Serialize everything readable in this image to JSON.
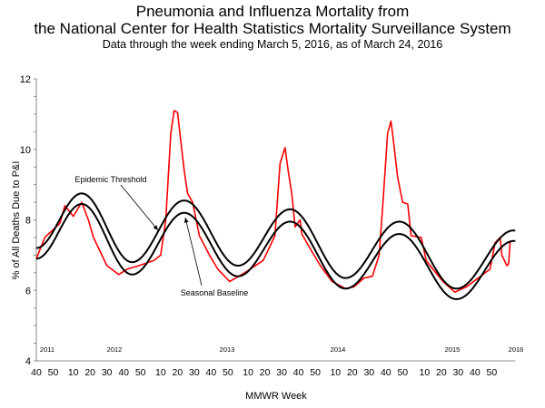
{
  "chart_data": {
    "type": "line",
    "title": "Pneumonia and Influenza Mortality from",
    "title_line2": "the National Center for Health Statistics Mortality Surveillance System",
    "subtitle": "Data through the week ending March 5, 2016, as of March 24, 2016",
    "xlabel": "MMWR Week",
    "ylabel": "% of All Deaths Due to P&I",
    "ylim": [
      4,
      12
    ],
    "yticks": [
      "4",
      "6",
      "8",
      "10",
      "12"
    ],
    "xlim": [
      "2010-40",
      "2016-12"
    ],
    "xticks": [
      {
        "week": "2010-40",
        "label": "40"
      },
      {
        "week": "2010-50",
        "label": "50"
      },
      {
        "week": "2011-10",
        "label": "10"
      },
      {
        "week": "2011-20",
        "label": "20"
      },
      {
        "week": "2011-30",
        "label": "30"
      },
      {
        "week": "2011-40",
        "label": "40"
      },
      {
        "week": "2011-50",
        "label": "50"
      },
      {
        "week": "2012-10",
        "label": "10"
      },
      {
        "week": "2012-20",
        "label": "20"
      },
      {
        "week": "2012-30",
        "label": "30"
      },
      {
        "week": "2012-40",
        "label": "40"
      },
      {
        "week": "2012-50",
        "label": "50"
      },
      {
        "week": "2013-10",
        "label": "10"
      },
      {
        "week": "2013-20",
        "label": "20"
      },
      {
        "week": "2013-30",
        "label": "30"
      },
      {
        "week": "2013-40",
        "label": "40"
      },
      {
        "week": "2013-50",
        "label": "50"
      },
      {
        "week": "2014-10",
        "label": "10"
      },
      {
        "week": "2014-20",
        "label": "20"
      },
      {
        "week": "2014-30",
        "label": "30"
      },
      {
        "week": "2014-40",
        "label": "40"
      },
      {
        "week": "2014-50",
        "label": "50"
      },
      {
        "week": "2015-10",
        "label": "10"
      },
      {
        "week": "2015-20",
        "label": "20"
      },
      {
        "week": "2015-30",
        "label": "30"
      },
      {
        "week": "2015-40",
        "label": "40"
      },
      {
        "week": "2015-50",
        "label": "50"
      }
    ],
    "year_labels": [
      "2011",
      "2012",
      "2013",
      "2014",
      "2015",
      "2016"
    ],
    "grid": false,
    "legend": "none",
    "annotations": [
      "Epidemic Threshold",
      "Seasonal Baseline"
    ],
    "series": [
      {
        "color": "#ff0000",
        "points": [
          [
            "2010-40",
            6.9
          ],
          [
            "2010-45",
            7.5
          ],
          [
            "2011-02",
            7.9
          ],
          [
            "2011-05",
            8.4
          ],
          [
            "2011-10",
            8.1
          ],
          [
            "2011-15",
            8.5
          ],
          [
            "2011-19",
            8.0
          ],
          [
            "2011-22",
            7.5
          ],
          [
            "2011-30",
            6.7
          ],
          [
            "2011-37",
            6.45
          ],
          [
            "2011-42",
            6.6
          ],
          [
            "2011-49",
            6.7
          ],
          [
            "2012-06",
            6.85
          ],
          [
            "2012-10",
            7.0
          ],
          [
            "2012-13",
            8.0
          ],
          [
            "2012-16",
            10.45
          ],
          [
            "2012-18",
            11.1
          ],
          [
            "2012-20",
            11.05
          ],
          [
            "2012-24",
            9.4
          ],
          [
            "2012-26",
            8.75
          ],
          [
            "2012-29",
            8.5
          ],
          [
            "2012-33",
            7.55
          ],
          [
            "2012-39",
            7.0
          ],
          [
            "2012-44",
            6.6
          ],
          [
            "2012-51",
            6.25
          ],
          [
            "2013-08",
            6.5
          ],
          [
            "2013-19",
            6.85
          ],
          [
            "2013-26",
            7.55
          ],
          [
            "2013-29",
            9.6
          ],
          [
            "2013-32",
            10.05
          ],
          [
            "2013-34",
            9.35
          ],
          [
            "2013-36",
            8.75
          ],
          [
            "2013-38",
            7.8
          ],
          [
            "2013-41",
            8.0
          ],
          [
            "2013-42",
            7.6
          ],
          [
            "2013-48",
            7.1
          ],
          [
            "2014-01",
            6.7
          ],
          [
            "2014-08",
            6.25
          ],
          [
            "2014-16",
            6.05
          ],
          [
            "2014-21",
            6.1
          ],
          [
            "2014-27",
            6.35
          ],
          [
            "2014-32",
            6.4
          ],
          [
            "2014-36",
            7.0
          ],
          [
            "2014-38",
            8.3
          ],
          [
            "2014-41",
            10.45
          ],
          [
            "2014-43",
            10.8
          ],
          [
            "2014-44",
            10.45
          ],
          [
            "2014-47",
            9.2
          ],
          [
            "2014-50",
            8.5
          ],
          [
            "2014-53",
            8.45
          ],
          [
            "2015-02",
            7.55
          ],
          [
            "2015-08",
            7.5
          ],
          [
            "2015-11",
            6.85
          ],
          [
            "2015-15",
            6.6
          ],
          [
            "2015-21",
            6.25
          ],
          [
            "2015-28",
            5.95
          ],
          [
            "2015-35",
            6.1
          ],
          [
            "2015-42",
            6.35
          ],
          [
            "2015-49",
            6.6
          ],
          [
            "2015-52",
            7.35
          ],
          [
            "2016-03",
            7.5
          ],
          [
            "2016-04",
            7.0
          ],
          [
            "2016-07",
            6.7
          ],
          [
            "2016-08",
            6.75
          ],
          [
            "2016-09",
            7.4
          ]
        ]
      },
      {
        "name": "Epidemic Threshold",
        "color": "#000000",
        "points": [
          [
            "2010-40",
            7.2
          ],
          [
            "2011-15",
            8.75
          ],
          [
            "2011-45",
            6.8
          ],
          [
            "2012-24",
            8.55
          ],
          [
            "2013-04",
            6.7
          ],
          [
            "2013-35",
            8.3
          ],
          [
            "2014-16",
            6.35
          ],
          [
            "2014-48",
            7.95
          ],
          [
            "2015-29",
            6.05
          ],
          [
            "2016-11",
            7.7
          ],
          [
            "2016-12",
            7.7
          ]
        ]
      },
      {
        "name": "Seasonal Baseline",
        "color": "#000000",
        "points": [
          [
            "2010-40",
            6.9
          ],
          [
            "2011-15",
            8.45
          ],
          [
            "2011-45",
            6.45
          ],
          [
            "2012-24",
            8.2
          ],
          [
            "2013-04",
            6.4
          ],
          [
            "2013-35",
            7.95
          ],
          [
            "2014-16",
            6.05
          ],
          [
            "2014-48",
            7.6
          ],
          [
            "2015-29",
            5.75
          ],
          [
            "2016-11",
            7.4
          ],
          [
            "2016-12",
            7.4
          ]
        ]
      }
    ]
  }
}
